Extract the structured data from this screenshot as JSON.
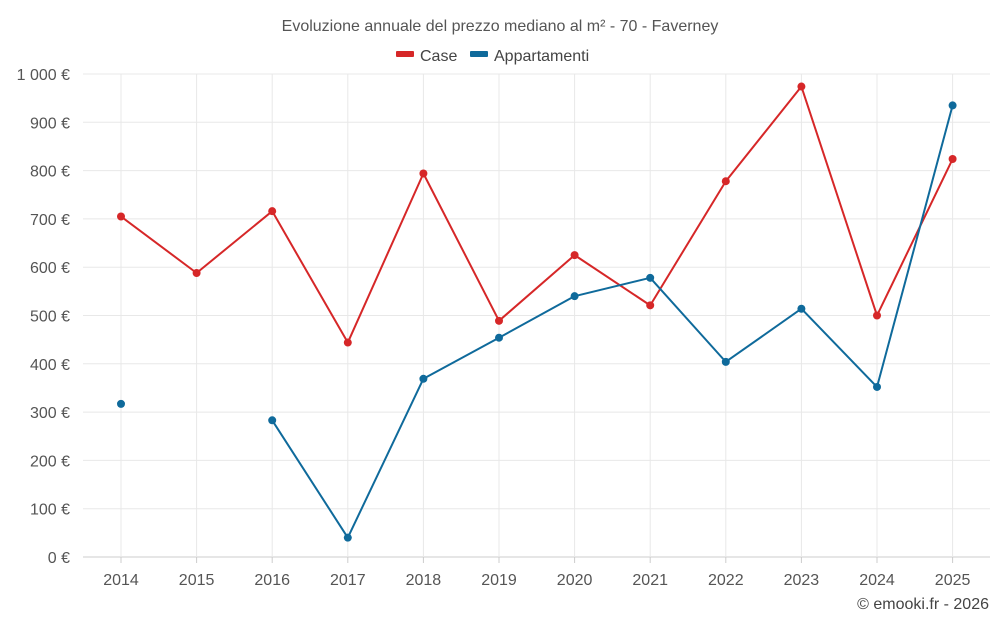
{
  "chart_data": {
    "type": "line",
    "title": "Evoluzione annuale del prezzo mediano al m² - 70 - Faverney",
    "xlabel": "",
    "ylabel": "",
    "categories": [
      "2014",
      "2015",
      "2016",
      "2017",
      "2018",
      "2019",
      "2020",
      "2021",
      "2022",
      "2023",
      "2024",
      "2025"
    ],
    "ylim": [
      0,
      1000
    ],
    "yticks": [
      0,
      100,
      200,
      300,
      400,
      500,
      600,
      700,
      800,
      900,
      1000
    ],
    "ytick_labels": [
      "0 €",
      "100 €",
      "200 €",
      "300 €",
      "400 €",
      "500 €",
      "600 €",
      "700 €",
      "800 €",
      "900 €",
      "1 000 €"
    ],
    "grid": true,
    "legend_position": "top-center",
    "series": [
      {
        "name": "Case",
        "color": "#d62728",
        "values": [
          705,
          588,
          716,
          444,
          794,
          489,
          625,
          521,
          778,
          974,
          500,
          824
        ]
      },
      {
        "name": "Appartamenti",
        "color": "#0f6a9b",
        "values": [
          317,
          null,
          283,
          40,
          369,
          454,
          540,
          578,
          404,
          514,
          352,
          935
        ]
      }
    ]
  },
  "credit": "© emooki.fr - 2026"
}
